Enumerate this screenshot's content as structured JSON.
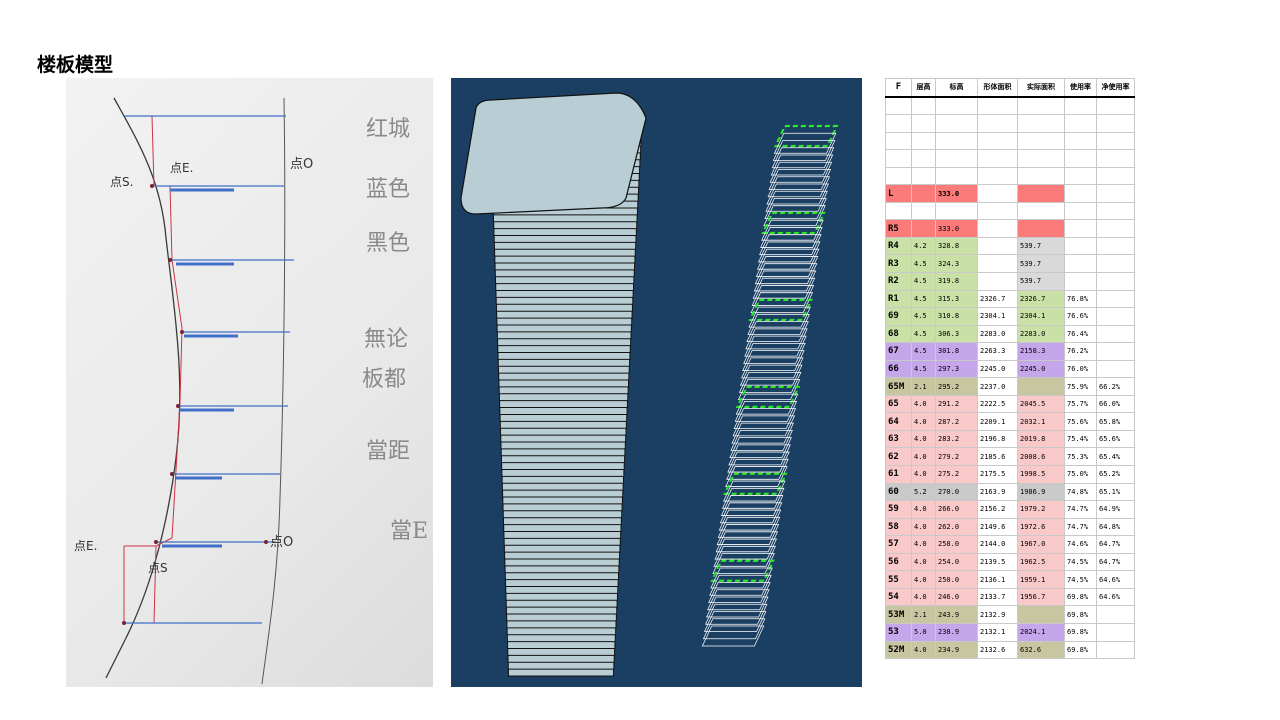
{
  "page": {
    "title": "楼板模型"
  },
  "sketch": {
    "labels": {
      "point_s_top": "点S.",
      "point_e_top": "点E.",
      "point_o_top": "点O",
      "point_e_bottom": "点E.",
      "point_s_bottom": "点S",
      "point_o_bottom": "点O"
    },
    "notes": [
      "红城",
      "蓝色",
      "黑色",
      "無论",
      "板都",
      "當距",
      "當E"
    ]
  },
  "sheet": {
    "headers": [
      "F",
      "层高",
      "标高",
      "形体面积",
      "实际面积",
      "使用率",
      "净使用率"
    ],
    "l_row": {
      "floor": "L",
      "elevation": "333.0"
    },
    "rows": [
      {
        "floor": "R5",
        "height": "",
        "elevation": "333.0",
        "form_area": "",
        "actual_area": "",
        "ratio": "",
        "net_ratio": "",
        "color": "red"
      },
      {
        "floor": "R4",
        "height": "4.2",
        "elevation": "328.8",
        "form_area": "",
        "actual_area": "539.7",
        "ratio": "",
        "net_ratio": "",
        "color": "green"
      },
      {
        "floor": "R3",
        "height": "4.5",
        "elevation": "324.3",
        "form_area": "",
        "actual_area": "539.7",
        "ratio": "",
        "net_ratio": "",
        "color": "green"
      },
      {
        "floor": "R2",
        "height": "4.5",
        "elevation": "319.8",
        "form_area": "",
        "actual_area": "539.7",
        "ratio": "",
        "net_ratio": "",
        "color": "green"
      },
      {
        "floor": "R1",
        "height": "4.5",
        "elevation": "315.3",
        "form_area": "2326.7",
        "actual_area": "2326.7",
        "ratio": "76.8%",
        "net_ratio": "",
        "color": "green"
      },
      {
        "floor": "69",
        "height": "4.5",
        "elevation": "310.8",
        "form_area": "2304.1",
        "actual_area": "2304.1",
        "ratio": "76.6%",
        "net_ratio": "",
        "color": "green"
      },
      {
        "floor": "68",
        "height": "4.5",
        "elevation": "306.3",
        "form_area": "2283.0",
        "actual_area": "2283.0",
        "ratio": "76.4%",
        "net_ratio": "",
        "color": "green"
      },
      {
        "floor": "67",
        "height": "4.5",
        "elevation": "301.8",
        "form_area": "2263.3",
        "actual_area": "2158.3",
        "ratio": "76.2%",
        "net_ratio": "",
        "color": "purple"
      },
      {
        "floor": "66",
        "height": "4.5",
        "elevation": "297.3",
        "form_area": "2245.0",
        "actual_area": "2245.0",
        "ratio": "76.0%",
        "net_ratio": "",
        "color": "purple"
      },
      {
        "floor": "65M",
        "height": "2.1",
        "elevation": "295.2",
        "form_area": "2237.0",
        "actual_area": "",
        "ratio": "75.9%",
        "net_ratio": "66.2%",
        "color": "olive"
      },
      {
        "floor": "65",
        "height": "4.0",
        "elevation": "291.2",
        "form_area": "2222.5",
        "actual_area": "2045.5",
        "ratio": "75.7%",
        "net_ratio": "66.0%",
        "color": "pink"
      },
      {
        "floor": "64",
        "height": "4.0",
        "elevation": "287.2",
        "form_area": "2209.1",
        "actual_area": "2032.1",
        "ratio": "75.6%",
        "net_ratio": "65.8%",
        "color": "pink"
      },
      {
        "floor": "63",
        "height": "4.0",
        "elevation": "283.2",
        "form_area": "2196.8",
        "actual_area": "2019.8",
        "ratio": "75.4%",
        "net_ratio": "65.6%",
        "color": "pink"
      },
      {
        "floor": "62",
        "height": "4.0",
        "elevation": "279.2",
        "form_area": "2185.6",
        "actual_area": "2008.6",
        "ratio": "75.3%",
        "net_ratio": "65.4%",
        "color": "pink"
      },
      {
        "floor": "61",
        "height": "4.0",
        "elevation": "275.2",
        "form_area": "2175.5",
        "actual_area": "1998.5",
        "ratio": "75.0%",
        "net_ratio": "65.2%",
        "color": "pink"
      },
      {
        "floor": "60",
        "height": "5.2",
        "elevation": "270.0",
        "form_area": "2163.9",
        "actual_area": "1986.9",
        "ratio": "74.8%",
        "net_ratio": "65.1%",
        "color": "gray"
      },
      {
        "floor": "59",
        "height": "4.0",
        "elevation": "266.0",
        "form_area": "2156.2",
        "actual_area": "1979.2",
        "ratio": "74.7%",
        "net_ratio": "64.9%",
        "color": "pink"
      },
      {
        "floor": "58",
        "height": "4.0",
        "elevation": "262.0",
        "form_area": "2149.6",
        "actual_area": "1972.6",
        "ratio": "74.7%",
        "net_ratio": "64.8%",
        "color": "pink"
      },
      {
        "floor": "57",
        "height": "4.0",
        "elevation": "258.0",
        "form_area": "2144.0",
        "actual_area": "1967.0",
        "ratio": "74.6%",
        "net_ratio": "64.7%",
        "color": "pink"
      },
      {
        "floor": "56",
        "height": "4.0",
        "elevation": "254.0",
        "form_area": "2139.5",
        "actual_area": "1962.5",
        "ratio": "74.5%",
        "net_ratio": "64.7%",
        "color": "pink"
      },
      {
        "floor": "55",
        "height": "4.0",
        "elevation": "250.0",
        "form_area": "2136.1",
        "actual_area": "1959.1",
        "ratio": "74.5%",
        "net_ratio": "64.6%",
        "color": "pink"
      },
      {
        "floor": "54",
        "height": "4.0",
        "elevation": "246.0",
        "form_area": "2133.7",
        "actual_area": "1956.7",
        "ratio": "69.8%",
        "net_ratio": "64.6%",
        "color": "pink"
      },
      {
        "floor": "53M",
        "height": "2.1",
        "elevation": "243.9",
        "form_area": "2132.9",
        "actual_area": "",
        "ratio": "69.8%",
        "net_ratio": "",
        "color": "olive"
      },
      {
        "floor": "53",
        "height": "5.0",
        "elevation": "238.9",
        "form_area": "2132.1",
        "actual_area": "2024.1",
        "ratio": "69.8%",
        "net_ratio": "",
        "color": "purple"
      },
      {
        "floor": "52M",
        "height": "4.0",
        "elevation": "234.9",
        "form_area": "2132.6",
        "actual_area": "632.6",
        "ratio": "69.8%",
        "net_ratio": "",
        "color": "olive"
      }
    ],
    "colors": {
      "red": "#fb7b7b",
      "green": "#c9e0a6",
      "purple": "#c6a6ea",
      "olive": "#c8c6a0",
      "pink": "#f9c9c9",
      "gray": "#c9c9c9"
    }
  },
  "model": {
    "background": "#1b3f63",
    "tower_fill": "#b9ced4",
    "outline_color": "#2de62d"
  }
}
